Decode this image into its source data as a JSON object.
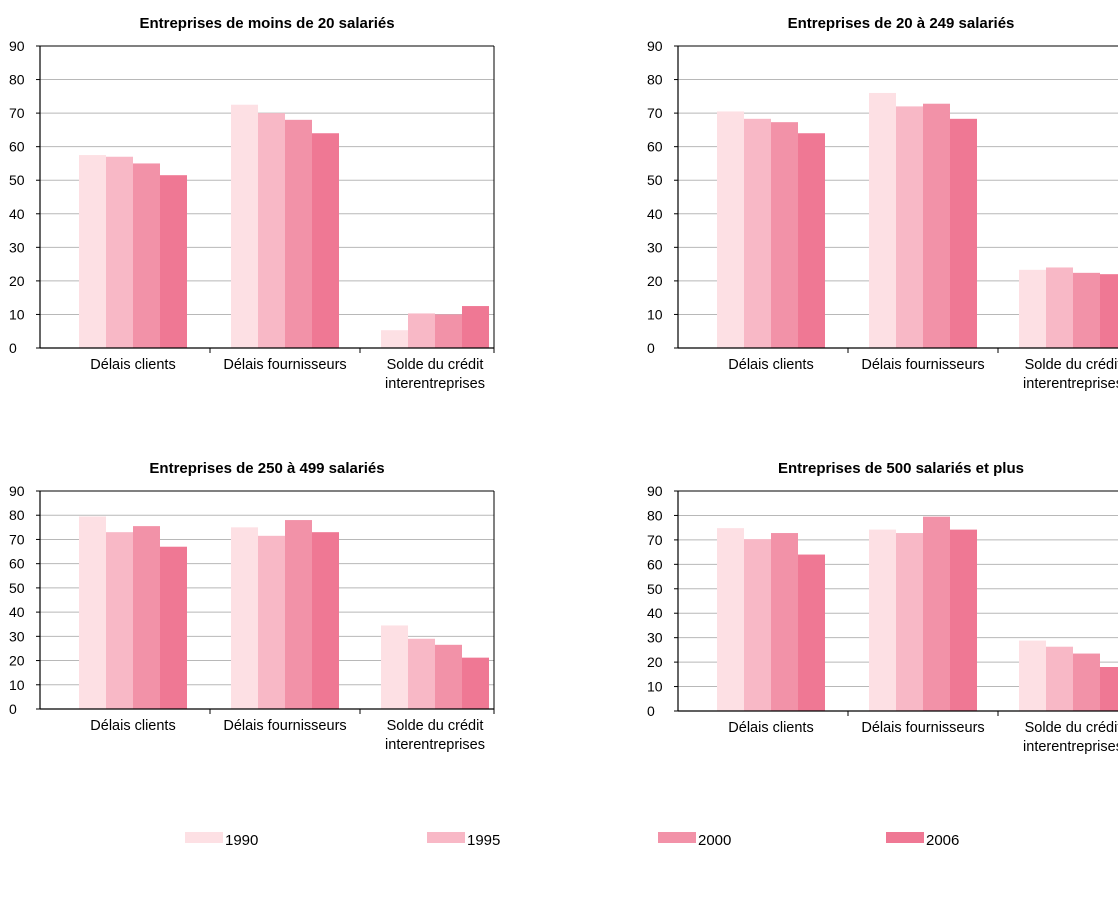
{
  "colors": {
    "1990": "#fde0e4",
    "1995": "#f8b8c6",
    "2000": "#f292a8",
    "2006": "#ef7894",
    "grid": "#b8b8b8",
    "axis": "#000000"
  },
  "legend": [
    "1990",
    "1995",
    "2000",
    "2006"
  ],
  "chart_data": [
    {
      "type": "bar",
      "title": "Entreprises de moins de 20 salariés",
      "categories": [
        "Délais clients",
        "Délais fournisseurs",
        [
          "Solde du crédit",
          "interentreprises"
        ]
      ],
      "ylim": [
        0,
        90
      ],
      "yticks": [
        0,
        10,
        20,
        30,
        40,
        50,
        60,
        70,
        80,
        90
      ],
      "grid": true,
      "series": [
        {
          "name": "1990",
          "values": [
            57.5,
            72.5,
            5.3
          ]
        },
        {
          "name": "1995",
          "values": [
            57.0,
            70.0,
            10.3
          ]
        },
        {
          "name": "2000",
          "values": [
            55.0,
            68.0,
            10.0
          ]
        },
        {
          "name": "2006",
          "values": [
            51.5,
            64.0,
            12.5
          ]
        }
      ]
    },
    {
      "type": "bar",
      "title": "Entreprises de 20 à 249 salariés",
      "categories": [
        "Délais clients",
        "Délais fournisseurs",
        [
          "Solde du crédit",
          "interentreprises"
        ]
      ],
      "ylim": [
        0,
        90
      ],
      "yticks": [
        0,
        10,
        20,
        30,
        40,
        50,
        60,
        70,
        80,
        90
      ],
      "grid": true,
      "series": [
        {
          "name": "1990",
          "values": [
            70.5,
            76.0,
            23.3
          ]
        },
        {
          "name": "1995",
          "values": [
            68.3,
            72.0,
            24.0
          ]
        },
        {
          "name": "2000",
          "values": [
            67.3,
            72.8,
            22.4
          ]
        },
        {
          "name": "2006",
          "values": [
            64.0,
            68.3,
            22.0
          ]
        }
      ]
    },
    {
      "type": "bar",
      "title": "Entreprises de 250 à 499 salariés",
      "categories": [
        "Délais clients",
        "Délais fournisseurs",
        [
          "Solde du crédit",
          "interentreprises"
        ]
      ],
      "ylim": [
        0,
        90
      ],
      "yticks": [
        0,
        10,
        20,
        30,
        40,
        50,
        60,
        70,
        80,
        90
      ],
      "grid": true,
      "series": [
        {
          "name": "1990",
          "values": [
            79.5,
            75.0,
            34.5
          ]
        },
        {
          "name": "1995",
          "values": [
            73.0,
            71.5,
            29.0
          ]
        },
        {
          "name": "2000",
          "values": [
            75.5,
            78.0,
            26.5
          ]
        },
        {
          "name": "2006",
          "values": [
            67.0,
            73.0,
            21.2
          ]
        }
      ]
    },
    {
      "type": "bar",
      "title": "Entreprises de 500 salariés et plus",
      "categories": [
        "Délais clients",
        "Délais fournisseurs",
        [
          "Solde du crédit",
          "interentreprises"
        ]
      ],
      "ylim": [
        0,
        90
      ],
      "yticks": [
        0,
        10,
        20,
        30,
        40,
        50,
        60,
        70,
        80,
        90
      ],
      "grid": true,
      "series": [
        {
          "name": "1990",
          "values": [
            74.8,
            74.2,
            28.8
          ]
        },
        {
          "name": "1995",
          "values": [
            70.3,
            72.8,
            26.3
          ]
        },
        {
          "name": "2000",
          "values": [
            72.8,
            79.5,
            23.5
          ]
        },
        {
          "name": "2006",
          "values": [
            64.0,
            74.2,
            18.0
          ]
        }
      ]
    }
  ]
}
